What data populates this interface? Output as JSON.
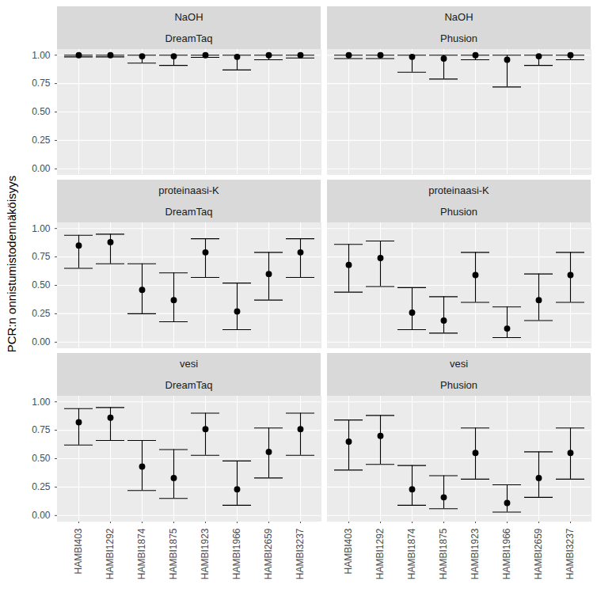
{
  "chart_data": {
    "type": "errorbar",
    "y_label": "PCR:n onnistumistodennäköisyys",
    "categories": [
      "HAMBI403",
      "HAMBI1292",
      "HAMBI1874",
      "HAMBI1875",
      "HAMBI1923",
      "HAMBI1966",
      "HAMBI2659",
      "HAMBI3237"
    ],
    "rows": [
      "NaOH",
      "proteinaasi-K",
      "vesi"
    ],
    "columns": [
      "DreamTaq",
      "Phusion"
    ],
    "ylim": [
      -0.05,
      1.05
    ],
    "yticks": [
      {
        "value": 0,
        "label": "0.00"
      },
      {
        "value": 0.25,
        "label": "0.25"
      },
      {
        "value": 0.5,
        "label": "0.50"
      },
      {
        "value": 0.75,
        "label": "0.75"
      },
      {
        "value": 1,
        "label": "1.00"
      }
    ],
    "grid": true,
    "color": "#000000",
    "marker": "circle",
    "panels": [
      {
        "row": "NaOH",
        "column": "DreamTaq",
        "values": [
          1.0,
          1.0,
          0.99,
          0.99,
          1.0,
          0.985,
          1.0,
          1.0
        ],
        "lower": [
          0.985,
          0.985,
          0.93,
          0.91,
          0.98,
          0.87,
          0.96,
          0.975
        ],
        "upper": [
          1.0,
          1.0,
          1.0,
          1.0,
          1.0,
          1.0,
          1.0,
          1.0
        ]
      },
      {
        "row": "NaOH",
        "column": "Phusion",
        "values": [
          1.0,
          1.0,
          0.985,
          0.97,
          1.0,
          0.96,
          0.99,
          1.0
        ],
        "lower": [
          0.97,
          0.97,
          0.85,
          0.79,
          0.96,
          0.72,
          0.91,
          0.96
        ],
        "upper": [
          1.0,
          1.0,
          1.0,
          1.0,
          1.0,
          1.0,
          1.0,
          1.0
        ]
      },
      {
        "row": "proteinaasi-K",
        "column": "DreamTaq",
        "values": [
          0.85,
          0.88,
          0.46,
          0.37,
          0.79,
          0.27,
          0.6,
          0.79
        ],
        "lower": [
          0.65,
          0.69,
          0.25,
          0.18,
          0.57,
          0.11,
          0.37,
          0.57
        ],
        "upper": [
          0.94,
          0.95,
          0.69,
          0.61,
          0.91,
          0.52,
          0.79,
          0.91
        ]
      },
      {
        "row": "proteinaasi-K",
        "column": "Phusion",
        "values": [
          0.68,
          0.74,
          0.26,
          0.19,
          0.59,
          0.12,
          0.37,
          0.59
        ],
        "lower": [
          0.44,
          0.49,
          0.11,
          0.08,
          0.35,
          0.04,
          0.19,
          0.35
        ],
        "upper": [
          0.86,
          0.89,
          0.48,
          0.4,
          0.79,
          0.31,
          0.6,
          0.79
        ]
      },
      {
        "row": "vesi",
        "column": "DreamTaq",
        "values": [
          0.82,
          0.86,
          0.43,
          0.33,
          0.76,
          0.23,
          0.56,
          0.76
        ],
        "lower": [
          0.62,
          0.66,
          0.22,
          0.15,
          0.53,
          0.09,
          0.33,
          0.53
        ],
        "upper": [
          0.94,
          0.95,
          0.66,
          0.58,
          0.9,
          0.48,
          0.77,
          0.9
        ]
      },
      {
        "row": "vesi",
        "column": "Phusion",
        "values": [
          0.65,
          0.7,
          0.23,
          0.16,
          0.55,
          0.11,
          0.33,
          0.55
        ],
        "lower": [
          0.4,
          0.45,
          0.09,
          0.06,
          0.32,
          0.03,
          0.16,
          0.32
        ],
        "upper": [
          0.84,
          0.88,
          0.44,
          0.35,
          0.77,
          0.27,
          0.56,
          0.77
        ]
      }
    ]
  }
}
